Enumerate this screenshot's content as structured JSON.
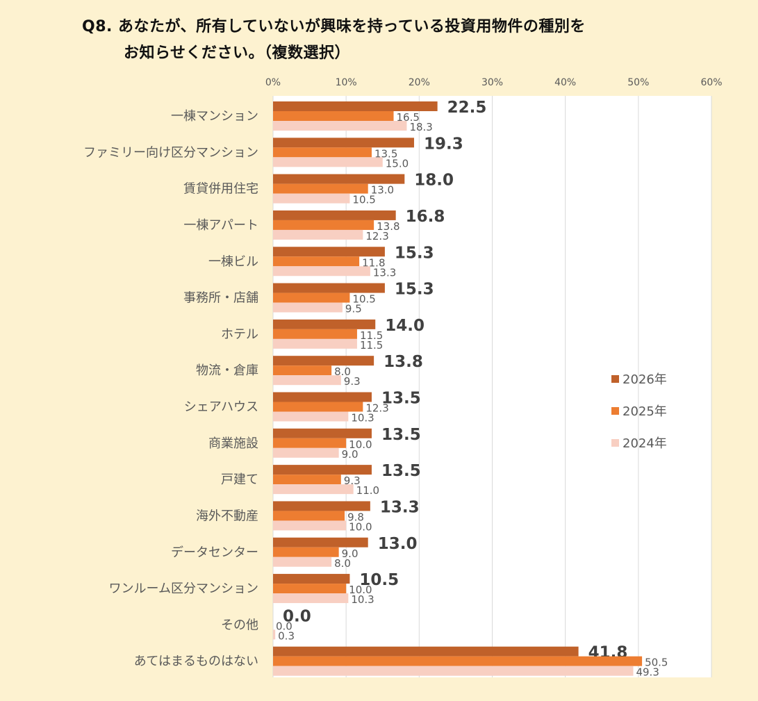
{
  "chart_data": {
    "type": "bar",
    "orientation": "horizontal",
    "title_line1": "Q8. あなたが、所有していないが興味を持っている投資用物件の種別を",
    "title_line2": "お知らせください。（複数選択）",
    "xlabel": "",
    "ylabel": "",
    "xlim": [
      0,
      60
    ],
    "x_ticks": [
      "0%",
      "10%",
      "20%",
      "30%",
      "40%",
      "50%",
      "60%"
    ],
    "grid": true,
    "legend_position": "right",
    "categories": [
      "一棟マンション",
      "ファミリー向け区分マンション",
      "賃貸併用住宅",
      "一棟アパート",
      "一棟ビル",
      "事務所・店舗",
      "ホテル",
      "物流・倉庫",
      "シェアハウス",
      "商業施設",
      "戸建て",
      "海外不動産",
      "データセンター",
      "ワンルーム区分マンション",
      "その他",
      "あてはまるものはない"
    ],
    "series": [
      {
        "name": "2026年",
        "color": "#c0612a",
        "values": [
          22.5,
          19.3,
          18.0,
          16.8,
          15.3,
          15.3,
          14.0,
          13.8,
          13.5,
          13.5,
          13.5,
          13.3,
          13.0,
          10.5,
          0.0,
          41.8
        ]
      },
      {
        "name": "2025年",
        "color": "#ed7d31",
        "values": [
          16.5,
          13.5,
          13.0,
          13.8,
          11.8,
          10.5,
          11.5,
          8.0,
          12.3,
          10.0,
          9.3,
          9.8,
          9.0,
          10.0,
          0.0,
          50.5
        ]
      },
      {
        "name": "2024年",
        "color": "#f8cfc2",
        "values": [
          18.3,
          15.0,
          10.5,
          12.3,
          13.3,
          9.5,
          11.5,
          9.3,
          10.3,
          9.0,
          11.0,
          10.0,
          8.0,
          10.3,
          0.3,
          49.3
        ]
      }
    ]
  }
}
